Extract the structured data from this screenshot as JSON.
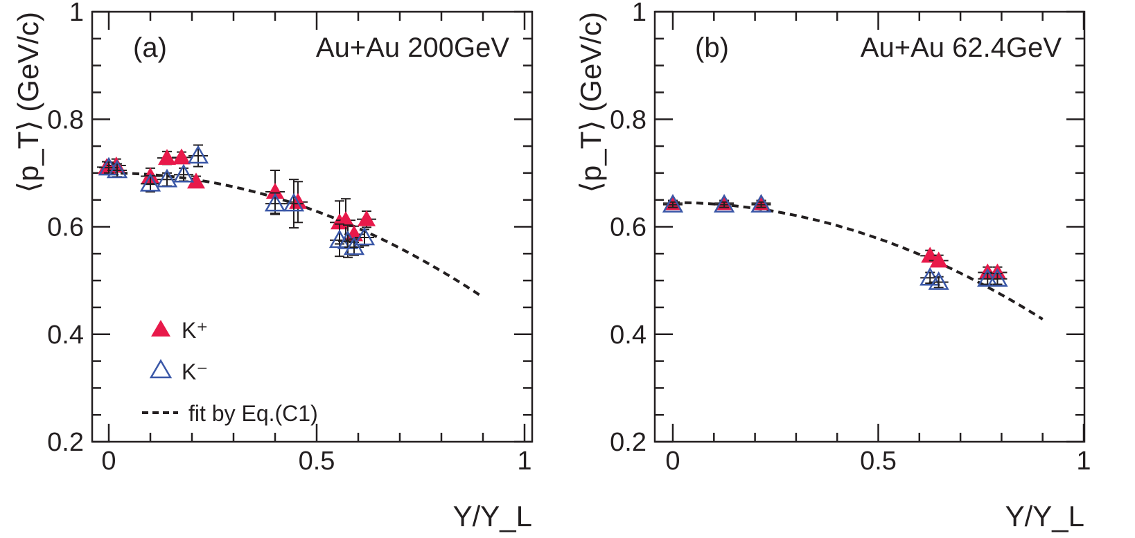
{
  "colors": {
    "k_plus": "#e8194a",
    "k_minus": "#3a57a7",
    "fit": "#231f20",
    "axis": "#231f20"
  },
  "chart_data": [
    {
      "type": "scatter",
      "panel_label": "(a)",
      "title": "Au+Au 200GeV",
      "xlabel": "Y/Y_L",
      "ylabel": "⟨p_T⟩ (GeV/c)",
      "xlim": [
        -0.04,
        1.02
      ],
      "ylim": [
        0.2,
        1.0
      ],
      "xticks": [
        "0",
        "0.5",
        "1"
      ],
      "yticks": [
        "0.2",
        "0.4",
        "0.6",
        "0.8",
        "1"
      ],
      "legend_position": "bottom-left",
      "legend": [
        "K⁺",
        "K⁻",
        "fit by Eq.(C1)"
      ],
      "series": [
        {
          "name": "K⁺",
          "marker": "filled-triangle",
          "x": [
            -0.005,
            0.018,
            0.1,
            0.14,
            0.175,
            0.21,
            0.4,
            0.455,
            0.555,
            0.57,
            0.59,
            0.62
          ],
          "y": [
            0.711,
            0.714,
            0.694,
            0.728,
            0.729,
            0.684,
            0.665,
            0.646,
            0.608,
            0.612,
            0.586,
            0.614
          ],
          "yerr": [
            0.01,
            0.012,
            0.015,
            0.012,
            0.01,
            0.01,
            0.04,
            0.038,
            0.04,
            0.04,
            0.015,
            0.015
          ]
        },
        {
          "name": "K⁻",
          "marker": "open-triangle",
          "x": [
            0.0,
            0.02,
            0.1,
            0.14,
            0.18,
            0.215,
            0.4,
            0.445,
            0.555,
            0.575,
            0.59,
            0.615
          ],
          "y": [
            0.71,
            0.705,
            0.68,
            0.688,
            0.697,
            0.732,
            0.643,
            0.643,
            0.575,
            0.573,
            0.562,
            0.58
          ],
          "yerr": [
            0.01,
            0.012,
            0.015,
            0.012,
            0.012,
            0.02,
            0.02,
            0.045,
            0.03,
            0.03,
            0.015,
            0.015
          ]
        },
        {
          "name": "fit by Eq.(C1)",
          "type": "line",
          "style": "dashed",
          "x_range": [
            0.0,
            0.9
          ],
          "y_at_0": 0.7,
          "y_at_0.9": 0.469
        }
      ]
    },
    {
      "type": "scatter",
      "panel_label": "(b)",
      "title": "Au+Au 62.4GeV",
      "xlabel": "Y/Y_L",
      "ylabel": "⟨p_T⟩ (GeV/c)",
      "xlim": [
        -0.04,
        1.0
      ],
      "ylim": [
        0.2,
        1.0
      ],
      "xticks": [
        "0",
        "0.5",
        "1"
      ],
      "yticks": [
        "0.2",
        "0.4",
        "0.6",
        "0.8",
        "1"
      ],
      "series": [
        {
          "name": "K⁺",
          "marker": "filled-triangle",
          "x": [
            0.0,
            0.125,
            0.215,
            0.626,
            0.647,
            0.766,
            0.79
          ],
          "y": [
            0.644,
            0.644,
            0.644,
            0.546,
            0.537,
            0.515,
            0.515
          ],
          "yerr": [
            0.005,
            0.005,
            0.005,
            0.01,
            0.01,
            0.01,
            0.01
          ]
        },
        {
          "name": "K⁻",
          "marker": "open-triangle",
          "x": [
            0.0,
            0.125,
            0.215,
            0.626,
            0.647,
            0.766,
            0.79
          ],
          "y": [
            0.641,
            0.641,
            0.641,
            0.505,
            0.497,
            0.503,
            0.503
          ],
          "yerr": [
            0.005,
            0.005,
            0.005,
            0.01,
            0.01,
            0.01,
            0.01
          ]
        },
        {
          "name": "fit by Eq.(C1)",
          "type": "line",
          "style": "dashed",
          "x_range": [
            0.0,
            0.9
          ],
          "y_at_0": 0.645,
          "y_at_0.9": 0.428
        }
      ]
    }
  ]
}
